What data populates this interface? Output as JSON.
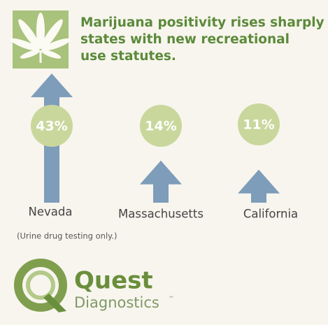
{
  "chart_data": {
    "type": "bar",
    "title": [
      "Marijuana positivity rises sharply in",
      "states with new recreational",
      "use statutes."
    ],
    "categories": [
      "Nevada",
      "Massachusetts",
      "California"
    ],
    "values": [
      43,
      14,
      11
    ],
    "value_labels": [
      "43%",
      "14%",
      "11%"
    ],
    "color": "#7d9dba",
    "note": "(Urine drug testing only.)"
  },
  "logo": {
    "name": "Quest",
    "subtitle": "Diagnostics",
    "mark": "™"
  }
}
